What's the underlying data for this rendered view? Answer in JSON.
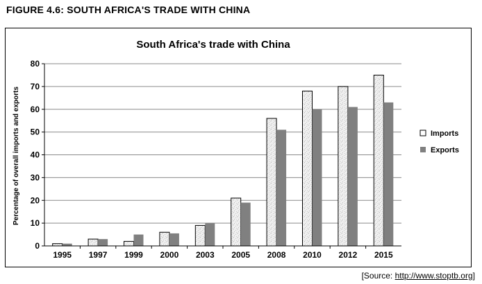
{
  "figure_heading": "FIGURE 4.6:  SOUTH AFRICA'S TRADE WITH CHINA",
  "source_prefix": "[Source:  ",
  "source_link": "http://www.stoptb.org",
  "source_suffix": "]",
  "chart_data": {
    "type": "bar",
    "title": "South Africa's trade with China",
    "xlabel": "",
    "ylabel": "Percentage of overall imports and exports",
    "categories": [
      "1995",
      "1997",
      "1999",
      "2000",
      "2003",
      "2005",
      "2008",
      "2010",
      "2012",
      "2015"
    ],
    "series": [
      {
        "name": "Imports",
        "values": [
          1,
          3,
          2,
          6,
          9,
          21,
          56,
          68,
          70,
          75
        ],
        "color": "#eeeeee",
        "pattern": "speckled"
      },
      {
        "name": "Exports",
        "values": [
          1,
          3,
          5,
          5.5,
          10,
          19,
          51,
          60,
          61,
          63
        ],
        "color": "#808080"
      }
    ],
    "ylim": [
      0,
      80
    ],
    "yticks": [
      0,
      10,
      20,
      30,
      40,
      50,
      60,
      70,
      80
    ],
    "grid": true,
    "legend_position": "right"
  }
}
